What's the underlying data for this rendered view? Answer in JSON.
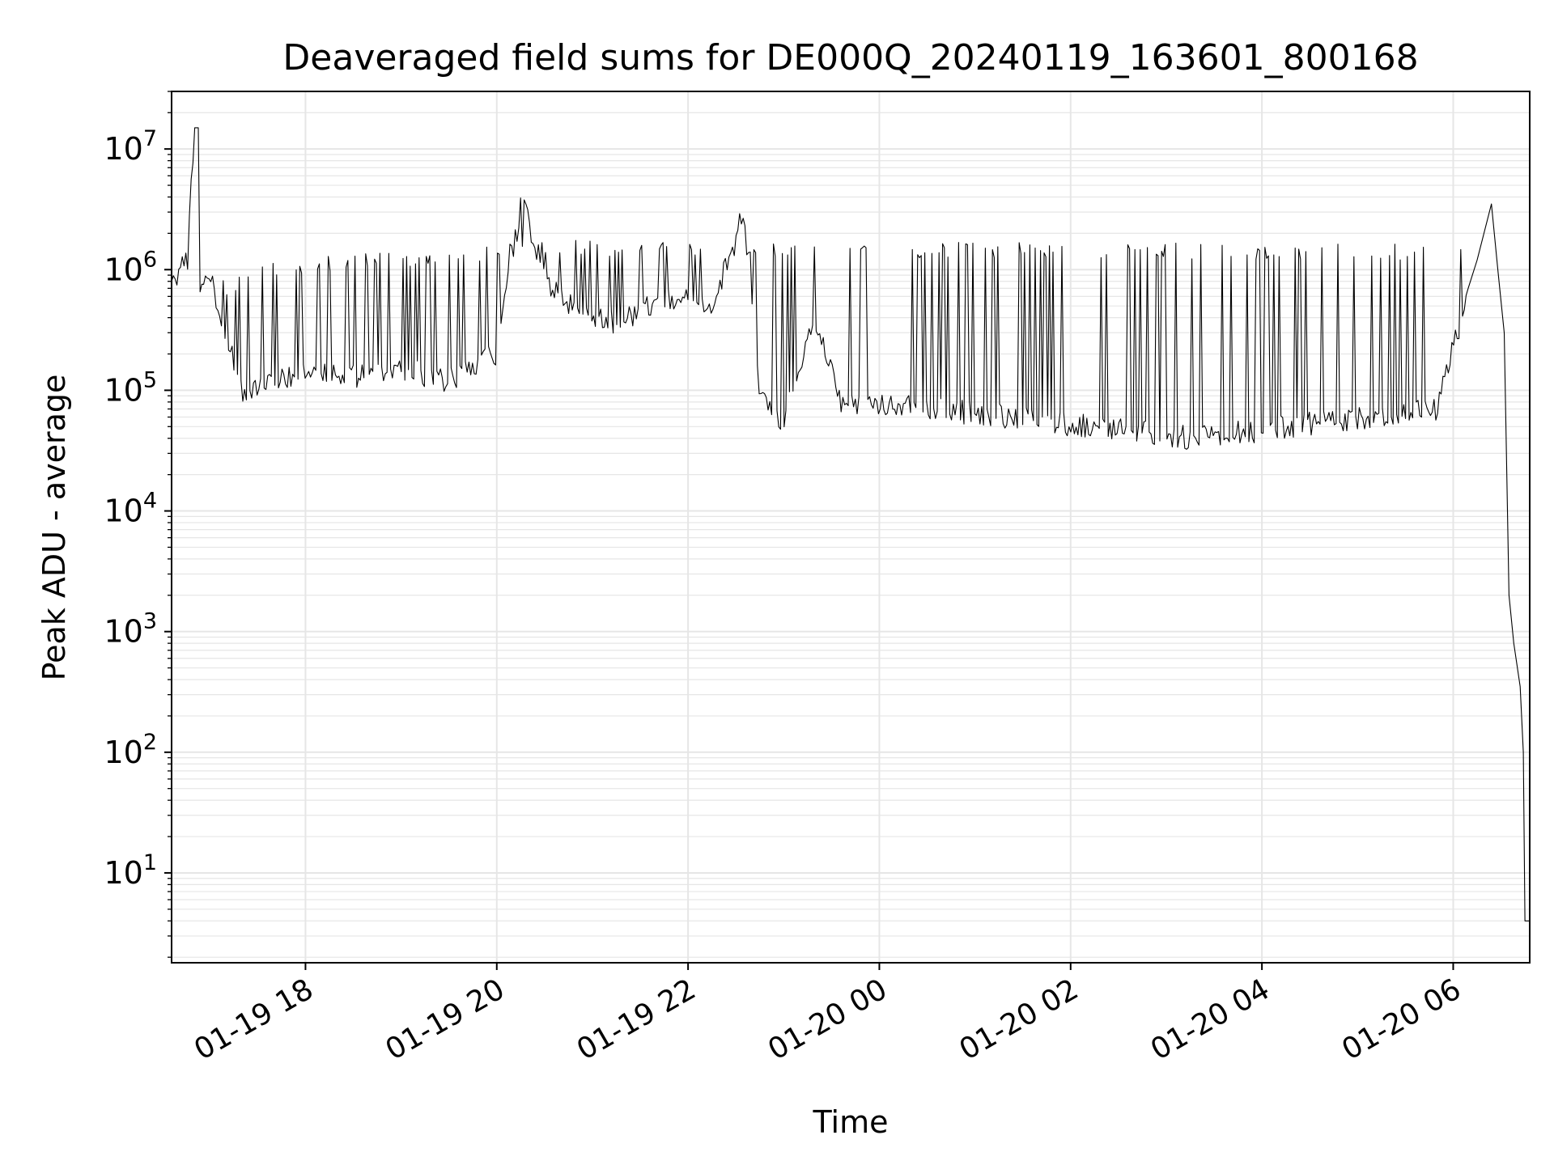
{
  "chart_data": {
    "type": "line",
    "title": "Deaveraged field sums for DE000Q_20240119_163601_800168",
    "xlabel": "Time",
    "ylabel": "Peak ADU - average",
    "yscale": "log",
    "ylim": [
      1.8,
      30000000
    ],
    "xlim": [
      "2024-01-19 16:36",
      "2024-01-20 06:48"
    ],
    "grid": "on (major and minor)",
    "line_color": "#000000",
    "grid_color": "#e6e6e6",
    "xticks": [
      {
        "value": "2024-01-19 18:00",
        "label": "01-19 18"
      },
      {
        "value": "2024-01-19 20:00",
        "label": "01-19 20"
      },
      {
        "value": "2024-01-19 22:00",
        "label": "01-19 22"
      },
      {
        "value": "2024-01-20 00:00",
        "label": "01-20 00"
      },
      {
        "value": "2024-01-20 02:00",
        "label": "01-20 02"
      },
      {
        "value": "2024-01-20 04:00",
        "label": "01-20 04"
      },
      {
        "value": "2024-01-20 06:00",
        "label": "01-20 06"
      }
    ],
    "yticks": [
      {
        "value": 10,
        "base": "10",
        "exp": "1"
      },
      {
        "value": 100,
        "base": "10",
        "exp": "2"
      },
      {
        "value": 1000,
        "base": "10",
        "exp": "3"
      },
      {
        "value": 10000,
        "base": "10",
        "exp": "4"
      },
      {
        "value": 100000,
        "base": "10",
        "exp": "5"
      },
      {
        "value": 1000000,
        "base": "10",
        "exp": "6"
      },
      {
        "value": 10000000,
        "base": "10",
        "exp": "7"
      }
    ],
    "series": [
      {
        "values": [
          [
            "2024-01-19 16:36",
            800000
          ],
          [
            "2024-01-19 16:45",
            1200000
          ],
          [
            "2024-01-19 16:51",
            15000000
          ],
          [
            "2024-01-19 16:52",
            500000
          ],
          [
            "2024-01-19 17:00",
            900000
          ],
          [
            "2024-01-19 17:10",
            300000
          ],
          [
            "2024-01-19 17:20",
            100000
          ],
          [
            "2024-01-19 17:40",
            120000
          ],
          [
            "2024-01-19 18:00",
            150000
          ],
          [
            "2024-01-19 18:30",
            130000
          ],
          [
            "2024-01-19 19:00",
            150000
          ],
          [
            "2024-01-19 19:30",
            120000
          ],
          [
            "2024-01-19 20:00",
            200000
          ],
          [
            "2024-01-19 20:17",
            4800000
          ],
          [
            "2024-01-19 20:25",
            1000000
          ],
          [
            "2024-01-19 20:45",
            500000
          ],
          [
            "2024-01-19 21:15",
            350000
          ],
          [
            "2024-01-19 21:45",
            600000
          ],
          [
            "2024-01-19 22:15",
            500000
          ],
          [
            "2024-01-19 22:35",
            3000000
          ],
          [
            "2024-01-19 22:45",
            100000
          ],
          [
            "2024-01-19 23:00",
            55000
          ],
          [
            "2024-01-19 23:20",
            400000
          ],
          [
            "2024-01-19 23:35",
            80000
          ],
          [
            "2024-01-20 01:00",
            65000
          ],
          [
            "2024-01-20 03:15",
            40000
          ],
          [
            "2024-01-20 05:50",
            70000
          ],
          [
            "2024-01-20 06:15",
            1200000
          ],
          [
            "2024-01-20 06:24",
            3500000
          ],
          [
            "2024-01-20 06:28",
            1000000
          ],
          [
            "2024-01-20 06:32",
            300000
          ],
          [
            "2024-01-20 06:35",
            2000
          ],
          [
            "2024-01-20 06:38",
            800
          ],
          [
            "2024-01-20 06:42",
            350
          ],
          [
            "2024-01-20 06:44",
            100
          ],
          [
            "2024-01-20 06:45",
            4
          ],
          [
            "2024-01-20 06:48",
            4
          ]
        ]
      }
    ]
  }
}
